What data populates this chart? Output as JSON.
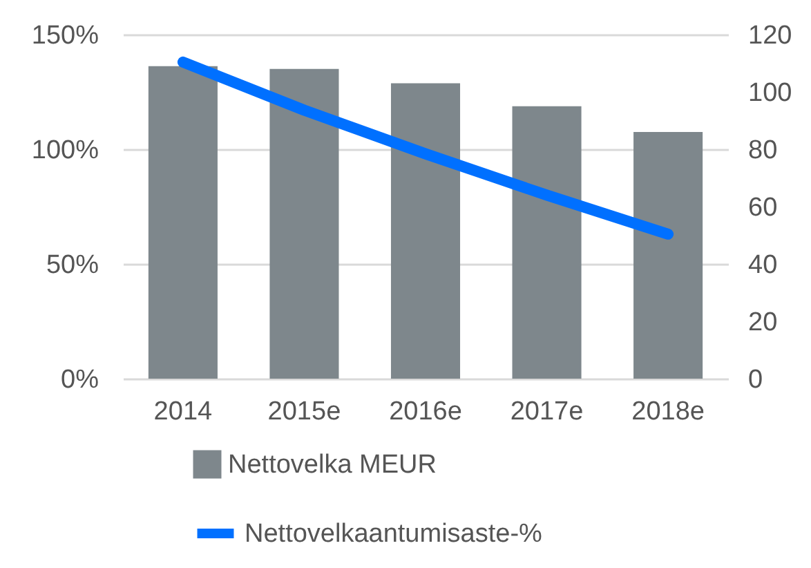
{
  "chart_data": {
    "type": "bar",
    "categories": [
      "2014",
      "2015e",
      "2016e",
      "2017e",
      "2018e"
    ],
    "series": [
      {
        "name": "Nettovelka MEUR",
        "color": "#7e878c",
        "axis": "y2",
        "values": [
          109,
          108,
          103,
          95,
          86
        ]
      },
      {
        "name": "Nettovelkaantumisaste-%",
        "type": "line",
        "color": "#0070ff",
        "values": [
          138,
          117,
          98,
          80,
          63
        ]
      }
    ],
    "ylim": [
      0,
      150
    ],
    "yticks": [
      {
        "value": 0,
        "label": "0%"
      },
      {
        "value": 50,
        "label": "50%"
      },
      {
        "value": 100,
        "label": "100%"
      },
      {
        "value": 150,
        "label": "150%"
      }
    ],
    "y2lim": [
      0,
      120
    ],
    "y2ticks": [
      0,
      20,
      40,
      60,
      80,
      100,
      120
    ],
    "grid": "y",
    "legend": "bottom"
  }
}
